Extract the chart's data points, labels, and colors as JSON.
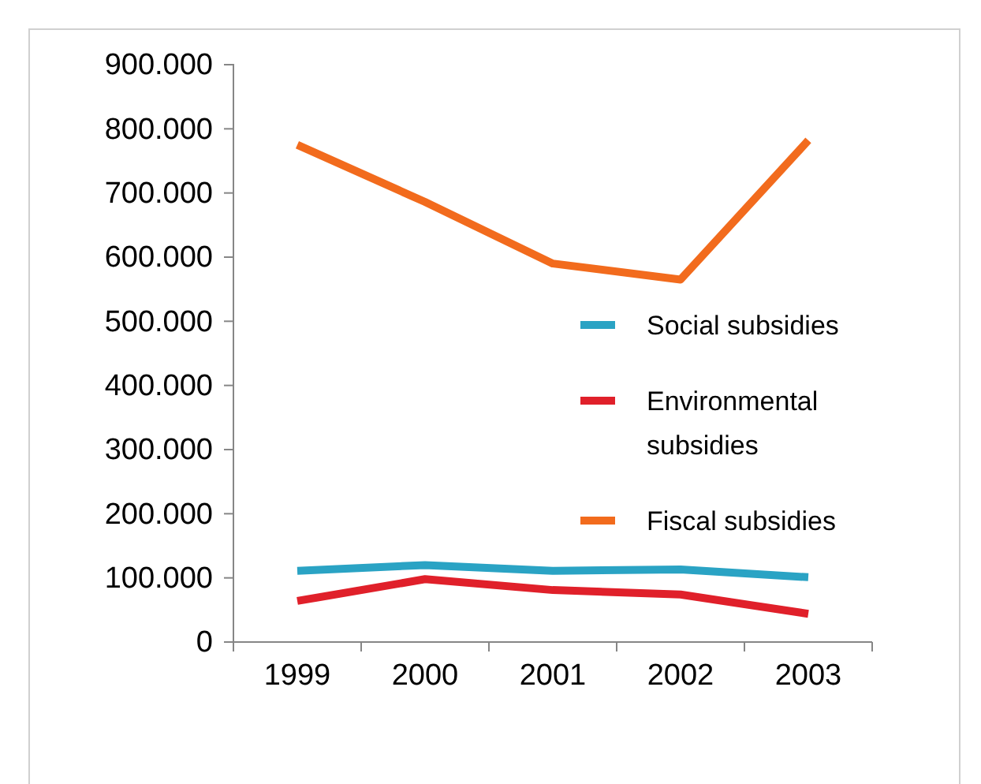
{
  "chart_data": {
    "type": "line",
    "categories": [
      "1999",
      "2000",
      "2001",
      "2002",
      "2003"
    ],
    "series": [
      {
        "name": "Social subsidies",
        "color": "#2aa3c4",
        "values": [
          111000,
          120000,
          111000,
          113000,
          101000
        ]
      },
      {
        "name": "Environmental subsidies",
        "color": "#e0202a",
        "values": [
          64000,
          98000,
          81000,
          74000,
          44000
        ]
      },
      {
        "name": "Fiscal subsidies",
        "color": "#f26b1d",
        "values": [
          775000,
          686000,
          590000,
          565000,
          782000
        ]
      }
    ],
    "ylim": [
      0,
      900000
    ],
    "yticks": [
      0,
      {
        "value": 100000,
        "label": "100.000"
      },
      {
        "value": 200000,
        "label": "200.000"
      },
      {
        "value": 300000,
        "label": "300.000"
      },
      {
        "value": 400000,
        "label": "400.000"
      },
      {
        "value": 500000,
        "label": "500.000"
      },
      {
        "value": 600000,
        "label": "600.000"
      },
      {
        "value": 700000,
        "label": "700.000"
      },
      {
        "value": 800000,
        "label": "800.000"
      },
      {
        "value": 900000,
        "label": "900.000"
      }
    ],
    "legend": "right",
    "grid": false,
    "marker": "none",
    "line_style": "solid"
  }
}
